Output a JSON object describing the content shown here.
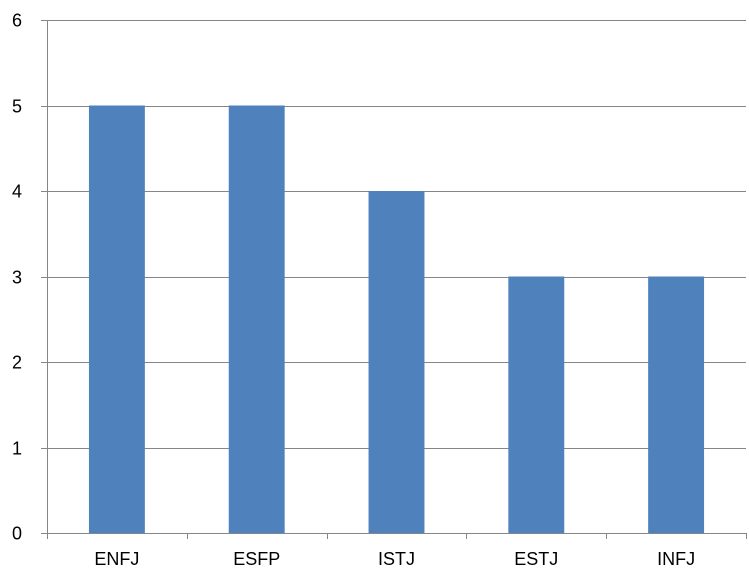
{
  "chart_data": {
    "type": "bar",
    "categories": [
      "ENFJ",
      "ESFP",
      "ISTJ",
      "ESTJ",
      "INFJ"
    ],
    "values": [
      5,
      5,
      4,
      3,
      3
    ],
    "title": "",
    "xlabel": "",
    "ylabel": "",
    "ylim": [
      0,
      6
    ],
    "yticks": [
      0,
      1,
      2,
      3,
      4,
      5,
      6
    ],
    "grid": true,
    "legend": "none",
    "bar_color": "#4f81bd",
    "grid_color": "#868686",
    "axis_color": "#868686"
  }
}
